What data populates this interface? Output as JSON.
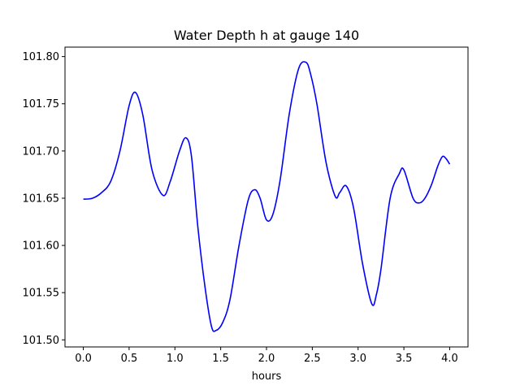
{
  "chart_data": {
    "type": "line",
    "title": "Water Depth h at gauge 140",
    "xlabel": "hours",
    "ylabel": "",
    "xlim": [
      -0.2,
      4.2
    ],
    "ylim": [
      101.4925,
      101.81
    ],
    "grid": false,
    "xticks": [
      0.0,
      0.5,
      1.0,
      1.5,
      2.0,
      2.5,
      3.0,
      3.5,
      4.0
    ],
    "xtick_labels": [
      "0.0",
      "0.5",
      "1.0",
      "1.5",
      "2.0",
      "2.5",
      "3.0",
      "3.5",
      "4.0"
    ],
    "yticks": [
      101.5,
      101.55,
      101.6,
      101.65,
      101.7,
      101.75,
      101.8
    ],
    "ytick_labels": [
      "101.50",
      "101.55",
      "101.60",
      "101.65",
      "101.70",
      "101.75",
      "101.80"
    ],
    "series": [
      {
        "color": "#0000ff",
        "x": [
          0.0,
          0.1,
          0.2,
          0.3,
          0.4,
          0.5,
          0.57,
          0.65,
          0.75,
          0.87,
          0.95,
          1.05,
          1.12,
          1.18,
          1.25,
          1.33,
          1.4,
          1.45,
          1.52,
          1.6,
          1.7,
          1.8,
          1.87,
          1.93,
          2.0,
          2.07,
          2.15,
          2.25,
          2.35,
          2.43,
          2.48,
          2.55,
          2.65,
          2.75,
          2.8,
          2.87,
          2.95,
          3.05,
          3.15,
          3.2,
          3.25,
          3.35,
          3.45,
          3.5,
          3.6,
          3.67,
          3.73,
          3.8,
          3.87,
          3.92,
          3.96,
          4.0
        ],
        "y": [
          101.649,
          101.65,
          101.656,
          101.668,
          101.7,
          101.748,
          101.762,
          101.738,
          101.68,
          101.653,
          101.668,
          101.7,
          101.714,
          101.695,
          101.62,
          101.555,
          101.514,
          101.51,
          101.518,
          101.542,
          101.6,
          101.648,
          101.659,
          101.65,
          101.627,
          101.633,
          101.67,
          101.74,
          101.787,
          101.794,
          101.782,
          101.75,
          101.688,
          101.652,
          101.656,
          101.663,
          101.64,
          101.58,
          101.538,
          101.548,
          101.575,
          101.65,
          101.676,
          101.68,
          101.65,
          101.645,
          101.65,
          101.664,
          101.684,
          101.694,
          101.692,
          101.686
        ]
      }
    ]
  }
}
